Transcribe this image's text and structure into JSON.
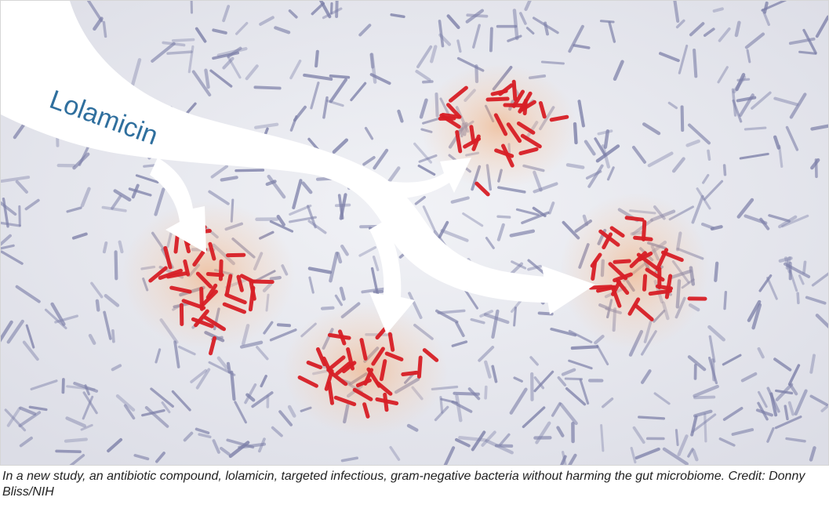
{
  "illustration": {
    "label": "Lolamicin",
    "colors": {
      "background": "#e9eaf0",
      "bacteria_neutral": "#7c7fa8",
      "bacteria_target": "#d81f26",
      "arrow": "#ffffff",
      "label": "#2f6f9e",
      "glow": "#f3a56a"
    }
  },
  "caption": {
    "text": "In a new study, an antibiotic compound, lolamicin, targeted infectious, gram-negative bacteria without harming the gut microbiome. Credit: Donny Bliss/NIH"
  }
}
